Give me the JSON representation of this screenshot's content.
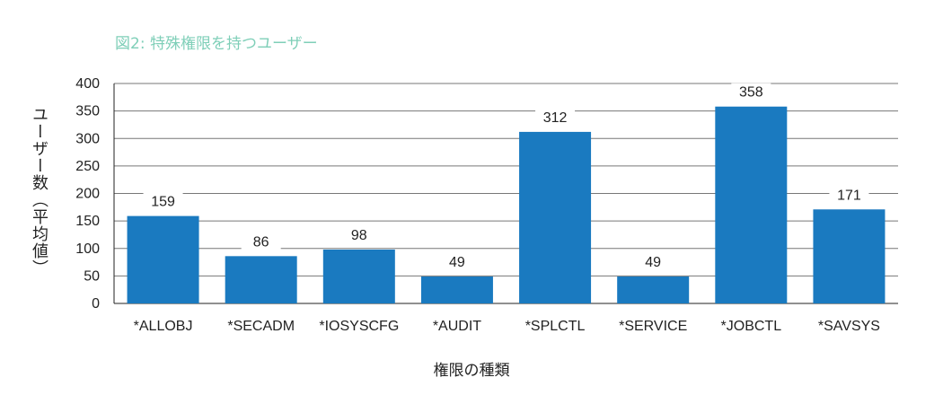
{
  "chart_data": {
    "type": "bar",
    "title": "図2: 特殊権限を持つユーザー",
    "xlabel": "権限の種類",
    "ylabel": "ユーザー数（平均値）",
    "categories": [
      "*ALLOBJ",
      "*SECADM",
      "*IOSYSCFG",
      "*AUDIT",
      "*SPLCTL",
      "*SERVICE",
      "*JOBCTL",
      "*SAVSYS"
    ],
    "values": [
      159,
      86,
      98,
      49,
      312,
      49,
      358,
      171
    ],
    "ylim": [
      0,
      400
    ],
    "yticks": [
      0,
      50,
      100,
      150,
      200,
      250,
      300,
      350,
      400
    ],
    "grid": true,
    "bar_color": "#1a7ac0",
    "title_color": "#7fcfb8"
  }
}
